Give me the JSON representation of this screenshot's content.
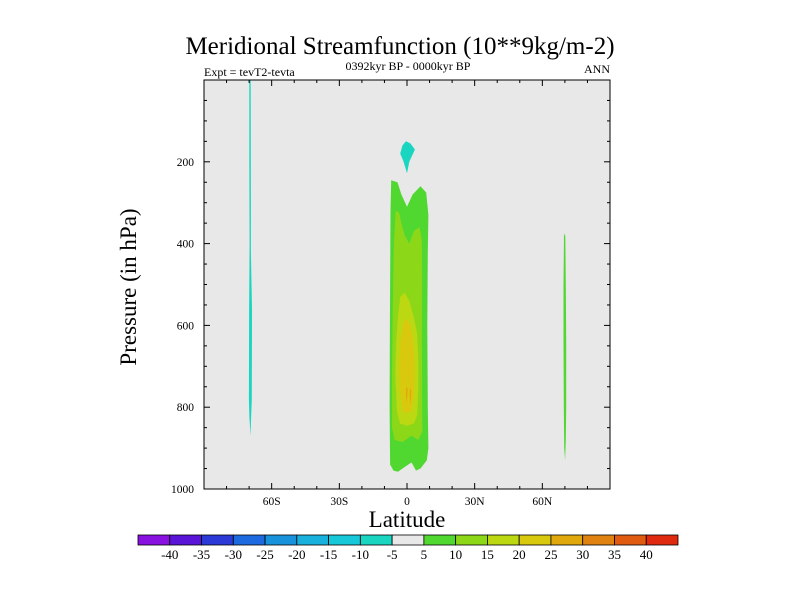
{
  "chart_data": {
    "type": "contour",
    "title": "Meridional Streamfunction (10**9kg/m-2)",
    "subtitle_left": "Expt = tevT2-tevta",
    "subtitle_center": "0392kyr BP - 0000kyr BP",
    "subtitle_right": "ANN",
    "xlabel": "Latitude",
    "ylabel": "Pressure (in hPa)",
    "xlim": [
      -90,
      90
    ],
    "ylim": [
      1000,
      0
    ],
    "x_ticks": [
      {
        "value": -60,
        "label": "60S"
      },
      {
        "value": -30,
        "label": "30S"
      },
      {
        "value": 0,
        "label": "0"
      },
      {
        "value": 30,
        "label": "30N"
      },
      {
        "value": 60,
        "label": "60N"
      }
    ],
    "y_ticks": [
      {
        "value": 200,
        "label": "200"
      },
      {
        "value": 400,
        "label": "400"
      },
      {
        "value": 600,
        "label": "600"
      },
      {
        "value": 800,
        "label": "800"
      },
      {
        "value": 1000,
        "label": "1000"
      }
    ],
    "background_color": "#e8e8e8",
    "levels": [
      -40,
      -35,
      -30,
      -25,
      -20,
      -15,
      -10,
      -5,
      5,
      10,
      15,
      20,
      25,
      30,
      35,
      40
    ],
    "colors": [
      "#8a12e0",
      "#5a14d8",
      "#2b3ad6",
      "#1d6ae0",
      "#1992dc",
      "#18b0dc",
      "#17c8d8",
      "#1ad6c0",
      "#e8e8e8",
      "#50d830",
      "#8cd818",
      "#bcd812",
      "#d8c80e",
      "#e0a80c",
      "#e08210",
      "#e05a10",
      "#e02a10"
    ],
    "regions": [
      {
        "name": "sh-negative-strip",
        "level_range": [
          -10,
          -5
        ],
        "color": "#1ad6c0",
        "polygon": [
          [
            -69.9,
            0
          ],
          [
            -69.3,
            0
          ],
          [
            -69.2,
            300
          ],
          [
            -69.2,
            420
          ],
          [
            -68.7,
            560
          ],
          [
            -68.8,
            780
          ],
          [
            -69.2,
            840
          ],
          [
            -69.4,
            870
          ],
          [
            -69.9,
            820
          ],
          [
            -70.1,
            780
          ],
          [
            -70.0,
            560
          ],
          [
            -69.8,
            400
          ],
          [
            -69.9,
            200
          ]
        ]
      },
      {
        "name": "upper-negative-cell",
        "level_range": [
          -10,
          -5
        ],
        "color": "#1ad6c0",
        "polygon": [
          [
            -0.5,
            150
          ],
          [
            1.5,
            155
          ],
          [
            3.5,
            170
          ],
          [
            1.0,
            200
          ],
          [
            0.0,
            228
          ],
          [
            -1.5,
            200
          ],
          [
            -3.0,
            180
          ],
          [
            -2.0,
            160
          ]
        ]
      },
      {
        "name": "tropical-cell-5-10",
        "level_range": [
          5,
          10
        ],
        "color": "#50d830",
        "polygon": [
          [
            -7.0,
            245
          ],
          [
            -4.2,
            250
          ],
          [
            -2.5,
            280
          ],
          [
            0.0,
            310
          ],
          [
            2.5,
            280
          ],
          [
            6.0,
            260
          ],
          [
            8.5,
            275
          ],
          [
            9.5,
            330
          ],
          [
            9.2,
            420
          ],
          [
            9.0,
            600
          ],
          [
            9.2,
            800
          ],
          [
            9.5,
            900
          ],
          [
            8.8,
            930
          ],
          [
            6.0,
            950
          ],
          [
            4.0,
            955
          ],
          [
            2.0,
            935
          ],
          [
            -2.0,
            950
          ],
          [
            -4.0,
            958
          ],
          [
            -6.0,
            955
          ],
          [
            -7.5,
            940
          ],
          [
            -7.7,
            800
          ],
          [
            -7.6,
            600
          ],
          [
            -7.4,
            420
          ],
          [
            -7.3,
            320
          ]
        ]
      },
      {
        "name": "tropical-cell-10-15",
        "level_range": [
          10,
          15
        ],
        "color": "#8cd818",
        "polygon": [
          [
            -5.0,
            320
          ],
          [
            -3.5,
            325
          ],
          [
            -2.5,
            350
          ],
          [
            -1.0,
            380
          ],
          [
            1.0,
            400
          ],
          [
            3.0,
            370
          ],
          [
            5.5,
            360
          ],
          [
            6.5,
            390
          ],
          [
            6.7,
            470
          ],
          [
            6.6,
            600
          ],
          [
            6.7,
            780
          ],
          [
            6.8,
            860
          ],
          [
            5.0,
            880
          ],
          [
            2.0,
            870
          ],
          [
            -2.0,
            885
          ],
          [
            -5.5,
            880
          ],
          [
            -6.6,
            850
          ],
          [
            -6.6,
            700
          ],
          [
            -6.3,
            550
          ],
          [
            -5.8,
            400
          ]
        ]
      },
      {
        "name": "tropical-cell-15-20",
        "level_range": [
          15,
          20
        ],
        "color": "#bcd812",
        "polygon": [
          [
            -3.0,
            530
          ],
          [
            -1.0,
            520
          ],
          [
            1.0,
            540
          ],
          [
            3.0,
            580
          ],
          [
            4.5,
            620
          ],
          [
            5.0,
            680
          ],
          [
            5.0,
            760
          ],
          [
            4.5,
            820
          ],
          [
            3.0,
            840
          ],
          [
            0.0,
            845
          ],
          [
            -3.0,
            840
          ],
          [
            -4.5,
            810
          ],
          [
            -5.2,
            720
          ],
          [
            -4.8,
            640
          ],
          [
            -4.0,
            580
          ]
        ]
      },
      {
        "name": "tropical-cell-20-25",
        "level_range": [
          20,
          25
        ],
        "color": "#d8c80e",
        "polygon": [
          [
            -1.5,
            590
          ],
          [
            0.0,
            585
          ],
          [
            1.5,
            600
          ],
          [
            2.8,
            640
          ],
          [
            3.5,
            700
          ],
          [
            3.2,
            770
          ],
          [
            2.0,
            810
          ],
          [
            0.0,
            815
          ],
          [
            -2.0,
            810
          ],
          [
            -3.2,
            760
          ],
          [
            -3.5,
            700
          ],
          [
            -2.8,
            630
          ]
        ]
      },
      {
        "name": "tropical-cell-25-30",
        "level_range": [
          25,
          30
        ],
        "color": "#e0a80c",
        "polygon": [
          [
            -0.3,
            750
          ],
          [
            0.3,
            755
          ],
          [
            -0.1,
            790
          ],
          [
            -0.5,
            770
          ]
        ]
      },
      {
        "name": "tropical-cell-25-30-b",
        "level_range": [
          25,
          30
        ],
        "color": "#e0a80c",
        "polygon": [
          [
            1.3,
            752
          ],
          [
            1.9,
            758
          ],
          [
            1.7,
            795
          ],
          [
            1.2,
            772
          ]
        ]
      },
      {
        "name": "nh-positive-strip",
        "level_range": [
          5,
          10
        ],
        "color": "#50d830",
        "polygon": [
          [
            69.6,
            375
          ],
          [
            70.2,
            382
          ],
          [
            70.4,
            500
          ],
          [
            70.6,
            640
          ],
          [
            70.6,
            800
          ],
          [
            70.4,
            880
          ],
          [
            70.1,
            930
          ],
          [
            69.7,
            900
          ],
          [
            69.5,
            800
          ],
          [
            69.4,
            640
          ],
          [
            69.4,
            500
          ],
          [
            69.5,
            430
          ]
        ]
      }
    ]
  }
}
